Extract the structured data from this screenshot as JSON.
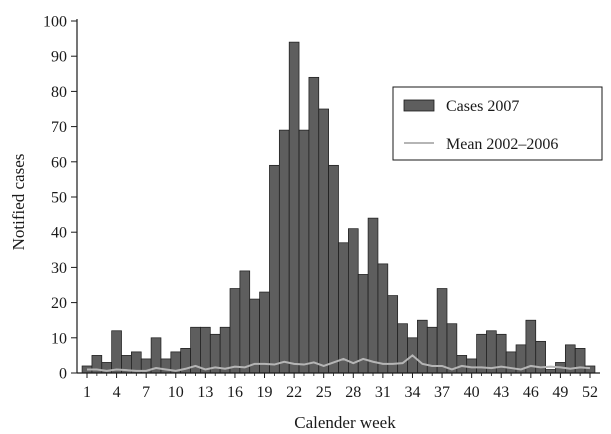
{
  "chart_data": {
    "type": "bar",
    "xlabel": "Calender week",
    "ylabel": "Notified cases",
    "x": [
      1,
      2,
      3,
      4,
      5,
      6,
      7,
      8,
      9,
      10,
      11,
      12,
      13,
      14,
      15,
      16,
      17,
      18,
      19,
      20,
      21,
      22,
      23,
      24,
      25,
      26,
      27,
      28,
      29,
      30,
      31,
      32,
      33,
      34,
      35,
      36,
      37,
      38,
      39,
      40,
      41,
      42,
      43,
      44,
      45,
      46,
      47,
      48,
      49,
      50,
      51,
      52
    ],
    "xticks": [
      "1",
      "4",
      "7",
      "10",
      "13",
      "16",
      "19",
      "22",
      "25",
      "28",
      "31",
      "34",
      "37",
      "40",
      "43",
      "46",
      "49",
      "52"
    ],
    "ylim": [
      0,
      100
    ],
    "yticks": [
      "0",
      "10",
      "20",
      "30",
      "40",
      "50",
      "60",
      "70",
      "80",
      "90",
      "100"
    ],
    "legend_position": "upper-right",
    "series": [
      {
        "name": "Cases 2007",
        "kind": "bar",
        "color": "#5e5e5e",
        "values": [
          2,
          5,
          3,
          12,
          5,
          6,
          4,
          10,
          4,
          6,
          7,
          13,
          13,
          11,
          13,
          24,
          29,
          21,
          23,
          59,
          69,
          94,
          69,
          84,
          75,
          59,
          37,
          41,
          28,
          44,
          31,
          22,
          14,
          10,
          15,
          13,
          24,
          14,
          5,
          4,
          11,
          12,
          11,
          6,
          8,
          15,
          9,
          1,
          3,
          8,
          7,
          2
        ]
      },
      {
        "name": "Mean 2002–2006",
        "kind": "line",
        "color": "#b5b5b5",
        "values": [
          1,
          1,
          0.6,
          1,
          0.8,
          0.6,
          0.6,
          1.4,
          1,
          0.6,
          1.2,
          2,
          1,
          1.6,
          1.2,
          1.8,
          1.6,
          2.6,
          2.6,
          2.4,
          3.2,
          2.6,
          2.4,
          3,
          2,
          3,
          4,
          2.8,
          4,
          3.2,
          2.6,
          2.6,
          2.8,
          5,
          2.6,
          2,
          2,
          1,
          2,
          1.6,
          1.6,
          1.4,
          1.8,
          1.4,
          1,
          2,
          1.6,
          1.8,
          1.6,
          1.2,
          1.6,
          1.4
        ]
      }
    ]
  }
}
